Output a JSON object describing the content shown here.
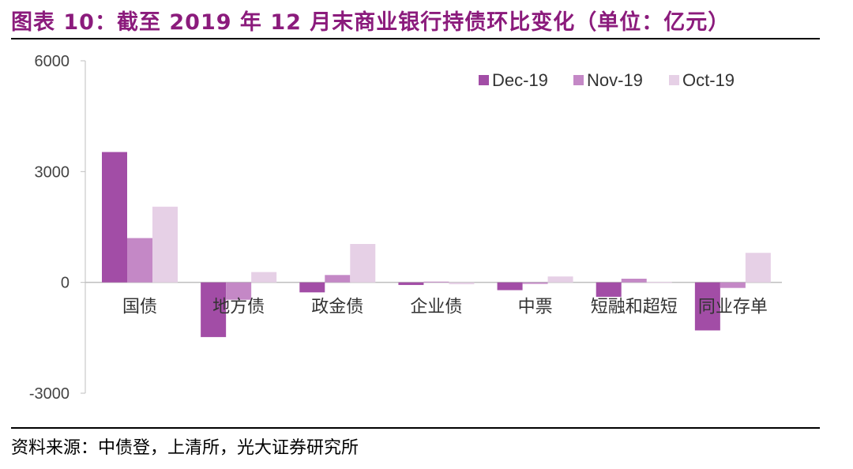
{
  "header": {
    "title": "图表 10：截至 2019 年 12 月末商业银行持债环比变化（单位：亿元）"
  },
  "footer": {
    "source": "资料来源：中债登，上清所，光大证券研究所"
  },
  "chart_data": {
    "type": "bar",
    "title": "",
    "xlabel": "",
    "ylabel": "",
    "ylim": [
      -3000,
      6000
    ],
    "yticks": [
      6000,
      3000,
      0,
      -3000
    ],
    "grid": false,
    "legend_position": "top-right",
    "categories": [
      "国债",
      "地方债",
      "政金债",
      "企业债",
      "中票",
      "短融和超短",
      "同业存单"
    ],
    "series": [
      {
        "name": "Dec-19",
        "color": "#A24DA6",
        "values": [
          3530,
          -1480,
          -270,
          -70,
          -210,
          -390,
          -1300
        ]
      },
      {
        "name": "Nov-19",
        "color": "#C488C6",
        "values": [
          1200,
          -470,
          200,
          20,
          -40,
          100,
          -150
        ]
      },
      {
        "name": "Oct-19",
        "color": "#E6D0E6",
        "values": [
          2050,
          280,
          1040,
          -50,
          160,
          10,
          800
        ]
      }
    ]
  }
}
